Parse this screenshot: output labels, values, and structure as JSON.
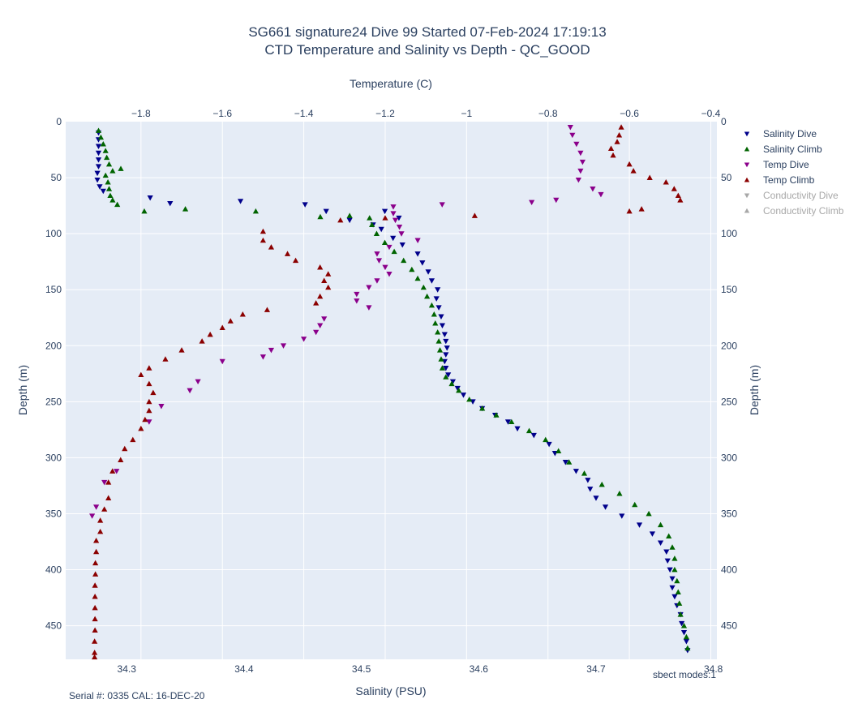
{
  "title_line1": "SG661 signature24 Dive 99 Started 07-Feb-2024 17:19:13",
  "title_line2": "CTD Temperature and Salinity vs Depth - QC_GOOD",
  "annotation_left": "Serial #: 0335  CAL: 16-DEC-20",
  "annotation_right": "sbect modes:1",
  "chart_data": {
    "type": "scatter",
    "xlabel": "Salinity (PSU)",
    "x2label": "Temperature (C)",
    "ylabel": "Depth (m)",
    "xlim": [
      34.248,
      34.803
    ],
    "x2lim": [
      -1.985,
      -0.385
    ],
    "ylim": [
      480,
      0
    ],
    "x_ticks": [
      "34.3",
      "34.4",
      "34.5",
      "34.6",
      "34.7",
      "34.8"
    ],
    "x2_ticks": [
      "−1.8",
      "−1.6",
      "−1.4",
      "−1.2",
      "−1",
      "−0.8",
      "−0.6",
      "−0.4"
    ],
    "y_ticks": [
      "0",
      "50",
      "100",
      "150",
      "200",
      "250",
      "300",
      "350",
      "400",
      "450"
    ],
    "grid": true,
    "legend_position": "right",
    "series": [
      {
        "name": "Salinity Dive",
        "axis": "salinity",
        "marker": "triangle-down",
        "color": "#00008b",
        "visible": true,
        "points": [
          [
            34.276,
            10
          ],
          [
            34.276,
            16
          ],
          [
            34.276,
            22
          ],
          [
            34.276,
            28
          ],
          [
            34.276,
            34
          ],
          [
            34.276,
            40
          ],
          [
            34.275,
            46
          ],
          [
            34.275,
            52
          ],
          [
            34.277,
            58
          ],
          [
            34.28,
            62
          ],
          [
            34.32,
            68
          ],
          [
            34.337,
            73
          ],
          [
            34.397,
            71
          ],
          [
            34.452,
            74
          ],
          [
            34.47,
            80
          ],
          [
            34.52,
            80
          ],
          [
            34.532,
            86
          ],
          [
            34.49,
            88
          ],
          [
            34.51,
            92
          ],
          [
            34.517,
            96
          ],
          [
            34.527,
            104
          ],
          [
            34.535,
            110
          ],
          [
            34.548,
            118
          ],
          [
            34.552,
            126
          ],
          [
            34.557,
            134
          ],
          [
            34.56,
            142
          ],
          [
            34.565,
            150
          ],
          [
            34.564,
            158
          ],
          [
            34.566,
            166
          ],
          [
            34.568,
            174
          ],
          [
            34.569,
            182
          ],
          [
            34.571,
            190
          ],
          [
            34.572,
            196
          ],
          [
            34.573,
            202
          ],
          [
            34.572,
            208
          ],
          [
            34.571,
            214
          ],
          [
            34.572,
            220
          ],
          [
            34.574,
            226
          ],
          [
            34.578,
            232
          ],
          [
            34.582,
            238
          ],
          [
            34.587,
            244
          ],
          [
            34.595,
            250
          ],
          [
            34.603,
            256
          ],
          [
            34.614,
            262
          ],
          [
            34.625,
            268
          ],
          [
            34.633,
            274
          ],
          [
            34.647,
            280
          ],
          [
            34.66,
            288
          ],
          [
            34.665,
            296
          ],
          [
            34.674,
            304
          ],
          [
            34.683,
            312
          ],
          [
            34.693,
            320
          ],
          [
            34.695,
            328
          ],
          [
            34.7,
            336
          ],
          [
            34.708,
            344
          ],
          [
            34.722,
            352
          ],
          [
            34.737,
            360
          ],
          [
            34.748,
            368
          ],
          [
            34.755,
            376
          ],
          [
            34.76,
            384
          ],
          [
            34.761,
            392
          ],
          [
            34.763,
            400
          ],
          [
            34.765,
            408
          ],
          [
            34.765,
            416
          ],
          [
            34.767,
            424
          ],
          [
            34.769,
            432
          ],
          [
            34.772,
            440
          ],
          [
            34.773,
            448
          ],
          [
            34.775,
            456
          ],
          [
            34.777,
            464
          ],
          [
            34.778,
            472
          ]
        ]
      },
      {
        "name": "Salinity Climb",
        "axis": "salinity",
        "marker": "triangle-up",
        "color": "#006400",
        "visible": true,
        "points": [
          [
            34.276,
            8
          ],
          [
            34.278,
            14
          ],
          [
            34.28,
            20
          ],
          [
            34.282,
            26
          ],
          [
            34.283,
            32
          ],
          [
            34.285,
            38
          ],
          [
            34.295,
            42
          ],
          [
            34.288,
            44
          ],
          [
            34.282,
            48
          ],
          [
            34.284,
            54
          ],
          [
            34.285,
            60
          ],
          [
            34.286,
            66
          ],
          [
            34.288,
            70
          ],
          [
            34.292,
            74
          ],
          [
            34.35,
            78
          ],
          [
            34.315,
            80
          ],
          [
            34.41,
            80
          ],
          [
            34.465,
            85
          ],
          [
            34.49,
            84
          ],
          [
            34.507,
            86
          ],
          [
            34.509,
            92
          ],
          [
            34.513,
            100
          ],
          [
            34.52,
            108
          ],
          [
            34.528,
            116
          ],
          [
            34.536,
            124
          ],
          [
            34.543,
            132
          ],
          [
            34.548,
            140
          ],
          [
            34.553,
            148
          ],
          [
            34.556,
            156
          ],
          [
            34.56,
            164
          ],
          [
            34.562,
            172
          ],
          [
            34.563,
            180
          ],
          [
            34.565,
            188
          ],
          [
            34.566,
            196
          ],
          [
            34.567,
            204
          ],
          [
            34.568,
            212
          ],
          [
            34.569,
            220
          ],
          [
            34.572,
            228
          ],
          [
            34.577,
            234
          ],
          [
            34.583,
            240
          ],
          [
            34.592,
            248
          ],
          [
            34.603,
            256
          ],
          [
            34.615,
            262
          ],
          [
            34.628,
            268
          ],
          [
            34.643,
            276
          ],
          [
            34.657,
            284
          ],
          [
            34.668,
            294
          ],
          [
            34.677,
            304
          ],
          [
            34.69,
            314
          ],
          [
            34.705,
            324
          ],
          [
            34.72,
            332
          ],
          [
            34.733,
            342
          ],
          [
            34.745,
            350
          ],
          [
            34.755,
            360
          ],
          [
            34.762,
            370
          ],
          [
            34.765,
            380
          ],
          [
            34.767,
            390
          ],
          [
            34.767,
            400
          ],
          [
            34.769,
            410
          ],
          [
            34.77,
            420
          ],
          [
            34.771,
            430
          ],
          [
            34.772,
            440
          ],
          [
            34.775,
            450
          ],
          [
            34.777,
            460
          ],
          [
            34.778,
            470
          ]
        ]
      },
      {
        "name": "Temp Dive",
        "axis": "temperature",
        "marker": "triangle-down",
        "color": "#8b008b",
        "visible": true,
        "points": [
          [
            -0.745,
            5
          ],
          [
            -0.74,
            12
          ],
          [
            -0.73,
            20
          ],
          [
            -0.72,
            28
          ],
          [
            -0.715,
            36
          ],
          [
            -0.72,
            44
          ],
          [
            -0.725,
            52
          ],
          [
            -0.69,
            60
          ],
          [
            -0.67,
            65
          ],
          [
            -0.78,
            70
          ],
          [
            -0.84,
            72
          ],
          [
            -1.06,
            74
          ],
          [
            -1.18,
            76
          ],
          [
            -1.18,
            82
          ],
          [
            -1.175,
            88
          ],
          [
            -1.165,
            94
          ],
          [
            -1.16,
            100
          ],
          [
            -1.12,
            106
          ],
          [
            -1.19,
            112
          ],
          [
            -1.22,
            118
          ],
          [
            -1.215,
            124
          ],
          [
            -1.2,
            130
          ],
          [
            -1.19,
            136
          ],
          [
            -1.22,
            142
          ],
          [
            -1.24,
            148
          ],
          [
            -1.27,
            154
          ],
          [
            -1.27,
            160
          ],
          [
            -1.24,
            166
          ],
          [
            -1.35,
            176
          ],
          [
            -1.36,
            182
          ],
          [
            -1.37,
            188
          ],
          [
            -1.4,
            194
          ],
          [
            -1.45,
            200
          ],
          [
            -1.48,
            204
          ],
          [
            -1.5,
            210
          ],
          [
            -1.6,
            214
          ],
          [
            -1.66,
            232
          ],
          [
            -1.68,
            240
          ],
          [
            -1.75,
            254
          ],
          [
            -1.78,
            268
          ],
          [
            -1.86,
            312
          ],
          [
            -1.89,
            322
          ],
          [
            -1.91,
            344
          ],
          [
            -1.92,
            352
          ]
        ]
      },
      {
        "name": "Temp Climb",
        "axis": "temperature",
        "marker": "triangle-up",
        "color": "#8b0000",
        "visible": true,
        "points": [
          [
            -0.62,
            5
          ],
          [
            -0.625,
            12
          ],
          [
            -0.63,
            18
          ],
          [
            -0.645,
            24
          ],
          [
            -0.64,
            30
          ],
          [
            -0.6,
            38
          ],
          [
            -0.59,
            44
          ],
          [
            -0.55,
            50
          ],
          [
            -0.51,
            54
          ],
          [
            -0.49,
            60
          ],
          [
            -0.48,
            66
          ],
          [
            -0.475,
            70
          ],
          [
            -0.57,
            78
          ],
          [
            -0.6,
            80
          ],
          [
            -0.98,
            84
          ],
          [
            -1.2,
            86
          ],
          [
            -1.31,
            88
          ],
          [
            -1.5,
            98
          ],
          [
            -1.5,
            106
          ],
          [
            -1.48,
            112
          ],
          [
            -1.44,
            118
          ],
          [
            -1.42,
            124
          ],
          [
            -1.36,
            130
          ],
          [
            -1.34,
            136
          ],
          [
            -1.35,
            142
          ],
          [
            -1.34,
            148
          ],
          [
            -1.36,
            156
          ],
          [
            -1.37,
            162
          ],
          [
            -1.49,
            168
          ],
          [
            -1.55,
            172
          ],
          [
            -1.58,
            178
          ],
          [
            -1.6,
            184
          ],
          [
            -1.63,
            190
          ],
          [
            -1.65,
            196
          ],
          [
            -1.7,
            204
          ],
          [
            -1.74,
            212
          ],
          [
            -1.78,
            220
          ],
          [
            -1.8,
            226
          ],
          [
            -1.78,
            234
          ],
          [
            -1.77,
            242
          ],
          [
            -1.78,
            250
          ],
          [
            -1.78,
            258
          ],
          [
            -1.79,
            266
          ],
          [
            -1.8,
            274
          ],
          [
            -1.82,
            284
          ],
          [
            -1.84,
            292
          ],
          [
            -1.85,
            302
          ],
          [
            -1.87,
            312
          ],
          [
            -1.88,
            322
          ],
          [
            -1.88,
            336
          ],
          [
            -1.89,
            346
          ],
          [
            -1.9,
            356
          ],
          [
            -1.9,
            366
          ],
          [
            -1.91,
            374
          ],
          [
            -1.91,
            384
          ],
          [
            -1.912,
            394
          ],
          [
            -1.912,
            404
          ],
          [
            -1.913,
            414
          ],
          [
            -1.913,
            424
          ],
          [
            -1.913,
            434
          ],
          [
            -1.913,
            444
          ],
          [
            -1.913,
            454
          ],
          [
            -1.914,
            464
          ],
          [
            -1.914,
            474
          ],
          [
            -1.914,
            478
          ]
        ]
      },
      {
        "name": "Conductivity Dive",
        "axis": "salinity",
        "marker": "triangle-down",
        "color": "#b0b0b0",
        "visible": false,
        "points": []
      },
      {
        "name": "Conductivity Climb",
        "axis": "salinity",
        "marker": "triangle-up",
        "color": "#b0b0b0",
        "visible": false,
        "points": []
      }
    ]
  },
  "colors": {
    "plot_bg": "#e5ecf6",
    "grid": "#ffffff",
    "text": "#2a3f5f",
    "legend_hidden_text": "#a8a8a8"
  }
}
